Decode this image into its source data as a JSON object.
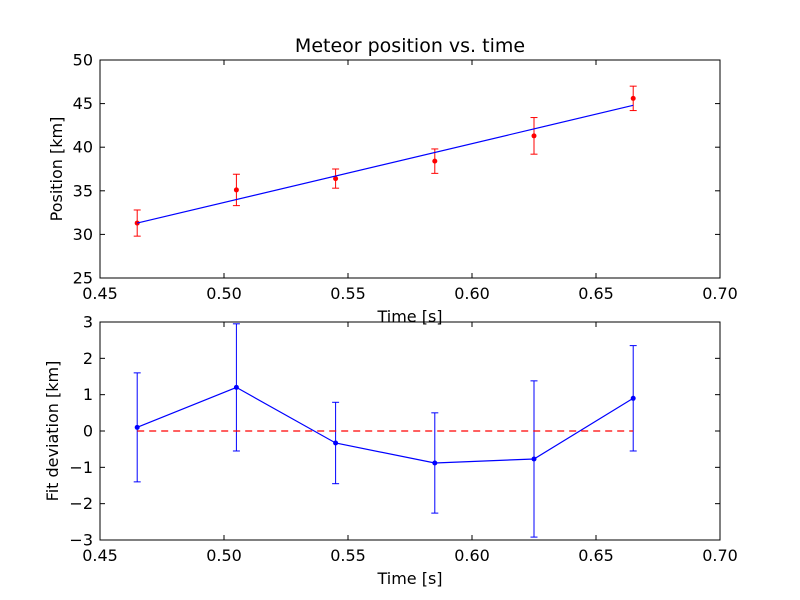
{
  "chart_data": [
    {
      "type": "scatter",
      "title": "Meteor position vs. time",
      "xlabel": "Time [s]",
      "ylabel": "Position [km]",
      "xlim": [
        0.45,
        0.7
      ],
      "ylim": [
        25,
        50
      ],
      "xticks": [
        "0.45",
        "0.50",
        "0.55",
        "0.60",
        "0.65",
        "0.70"
      ],
      "yticks": [
        "25",
        "30",
        "35",
        "40",
        "45",
        "50"
      ],
      "grid": false,
      "colors": {
        "points": "#ff0000",
        "fit": "#0000ff"
      },
      "series": [
        {
          "kind": "errorbar",
          "x": [
            0.465,
            0.505,
            0.545,
            0.585,
            0.625,
            0.665
          ],
          "y": [
            31.3,
            35.1,
            36.4,
            38.4,
            41.3,
            45.6
          ],
          "yerr": [
            1.5,
            1.8,
            1.1,
            1.4,
            2.1,
            1.4
          ]
        },
        {
          "kind": "line",
          "x": [
            0.465,
            0.665
          ],
          "y": [
            31.3,
            44.8
          ]
        }
      ]
    },
    {
      "type": "line",
      "title": "",
      "xlabel": "Time [s]",
      "ylabel": "Fit deviation [km]",
      "xlim": [
        0.45,
        0.7
      ],
      "ylim": [
        -3,
        3
      ],
      "xticks": [
        "0.45",
        "0.50",
        "0.55",
        "0.60",
        "0.65",
        "0.70"
      ],
      "yticks": [
        "−3",
        "−2",
        "−1",
        "0",
        "1",
        "2",
        "3"
      ],
      "grid": false,
      "colors": {
        "deviation": "#0000ff",
        "zero_line": "#ff0000"
      },
      "series": [
        {
          "kind": "errorbar",
          "x": [
            0.465,
            0.505,
            0.545,
            0.585,
            0.625,
            0.665
          ],
          "y": [
            0.1,
            1.2,
            -0.33,
            -0.88,
            -0.77,
            0.9
          ],
          "yerr": [
            1.5,
            1.75,
            1.12,
            1.38,
            2.15,
            1.45
          ]
        },
        {
          "kind": "reference-dashed",
          "x": [
            0.465,
            0.665
          ],
          "y": [
            0,
            0
          ]
        }
      ]
    }
  ]
}
